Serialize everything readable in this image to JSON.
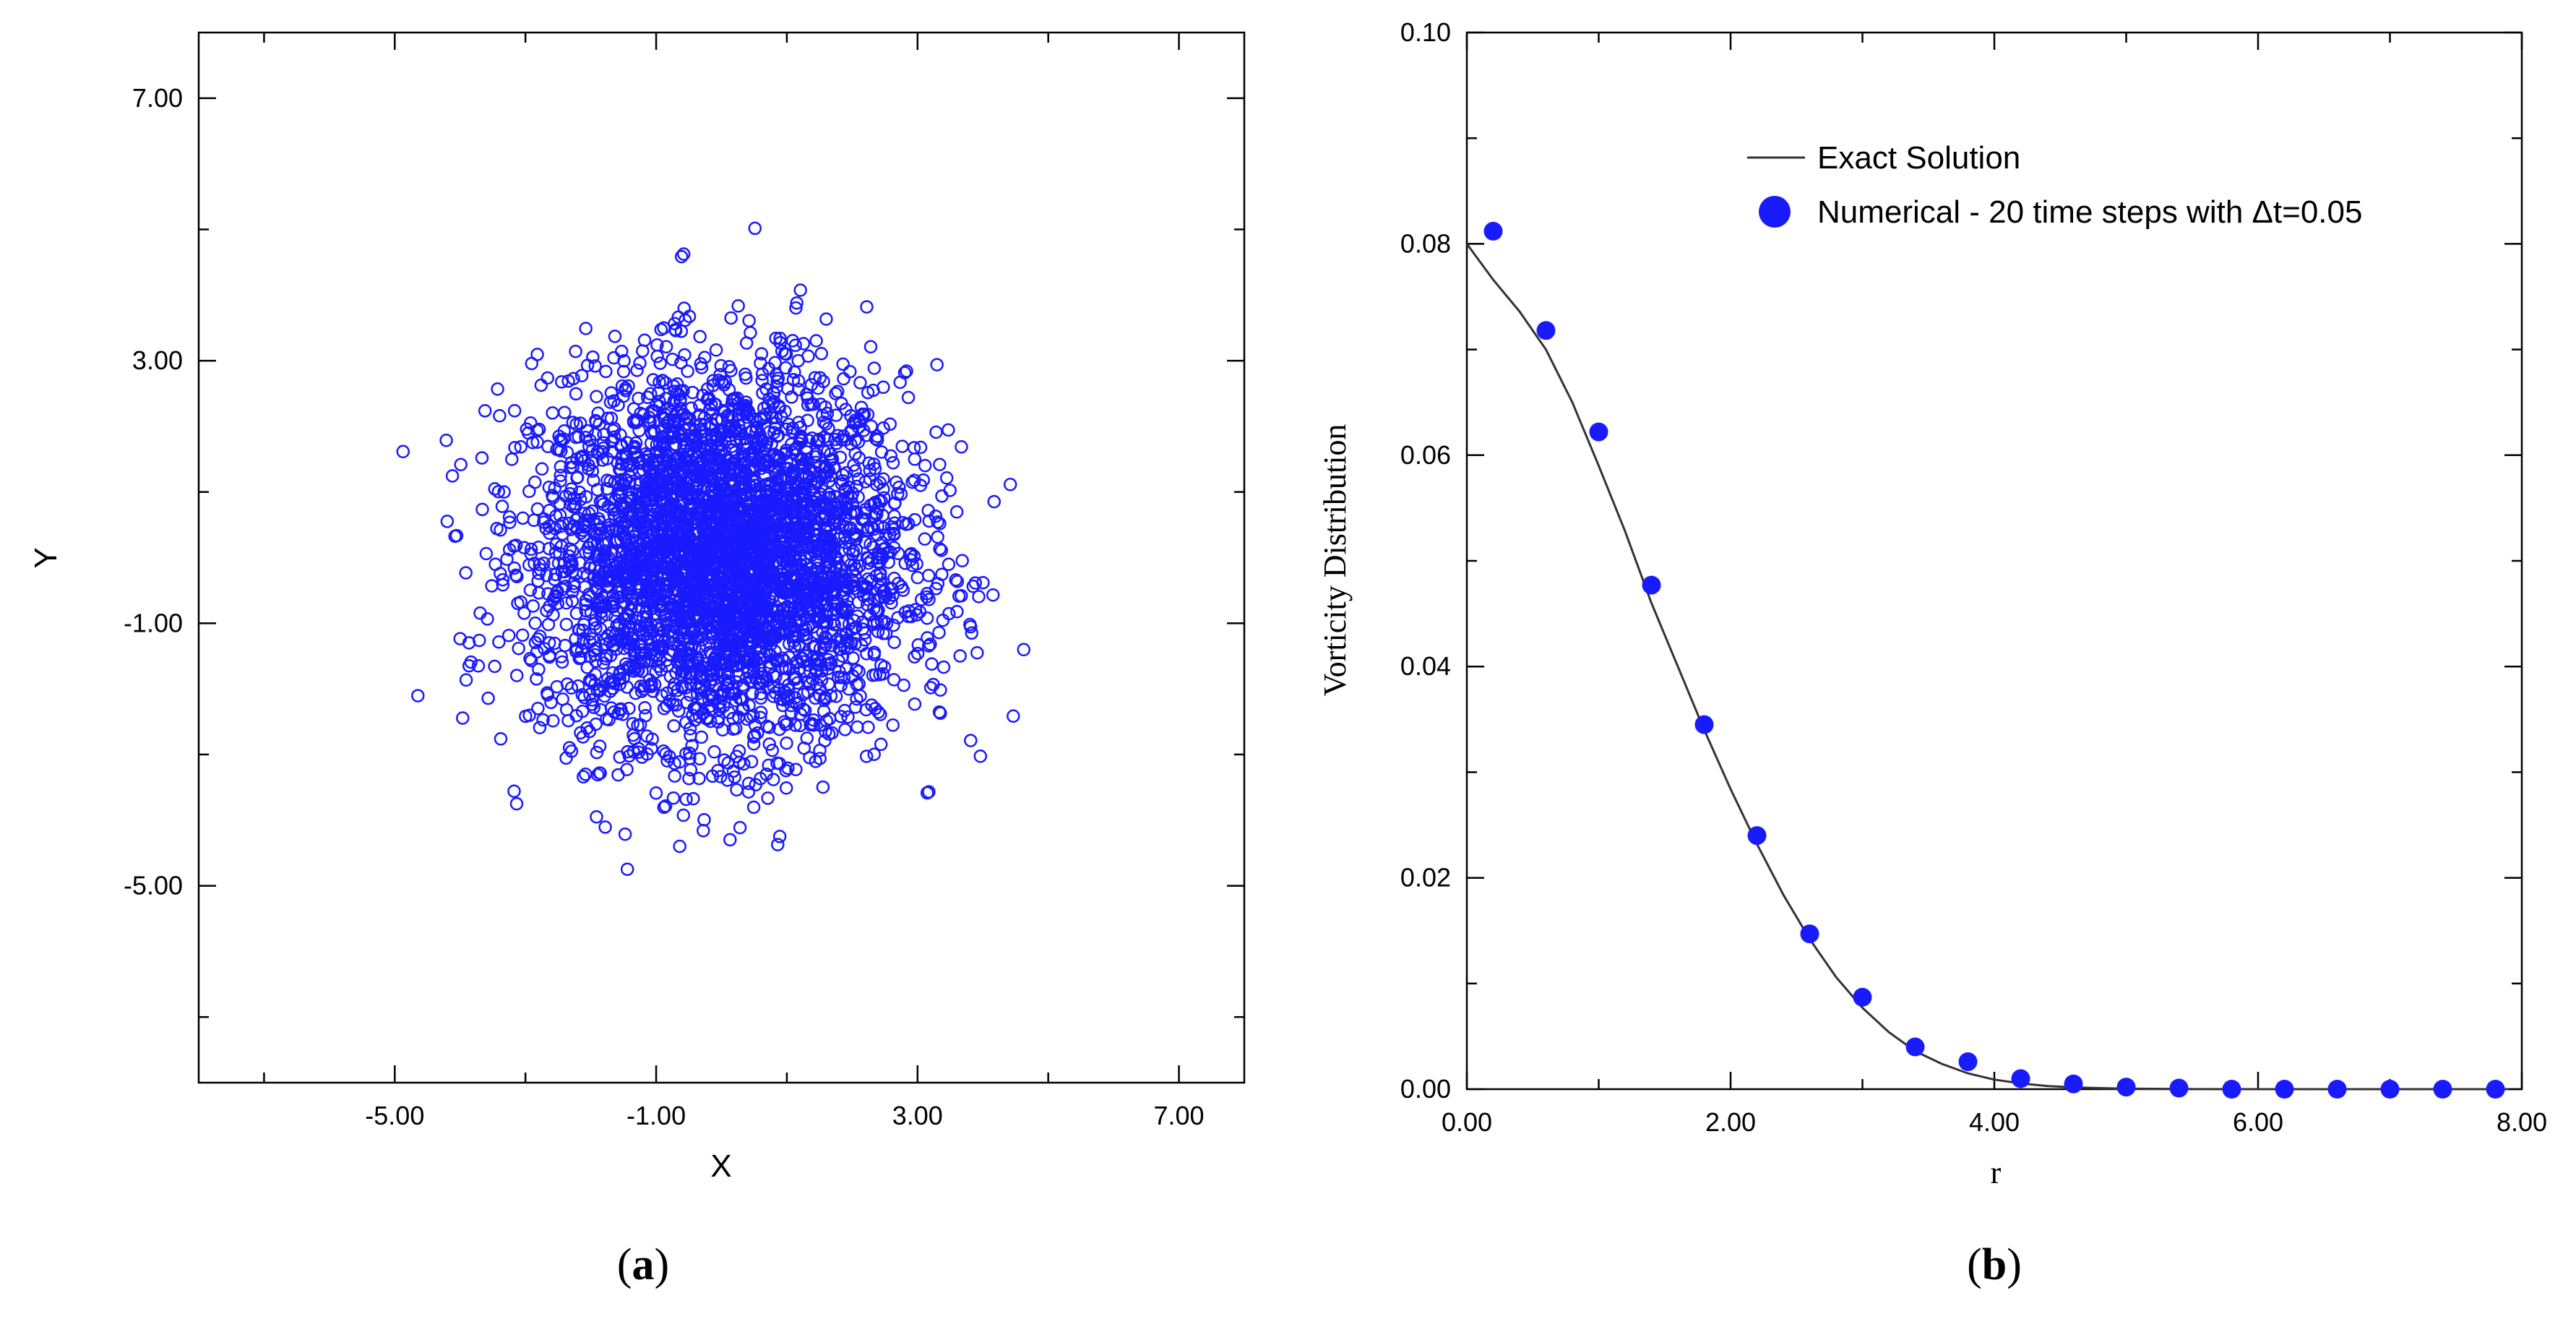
{
  "chart_data": [
    {
      "type": "scatter",
      "caption": "a",
      "xlabel": "X",
      "ylabel": "Y",
      "xlim": [
        -8,
        8
      ],
      "ylim": [
        -8,
        8
      ],
      "x_ticks": [
        -5,
        -1,
        3,
        7
      ],
      "y_ticks": [
        -5,
        -1,
        3,
        7
      ],
      "x_tick_labels": [
        "-5.00",
        "-1.00",
        "3.00",
        "7.00"
      ],
      "y_tick_labels": [
        "-5.00",
        "-1.00",
        "3.00",
        "7.00"
      ],
      "marker": "open-circle",
      "color": "#1a1aff",
      "distribution": {
        "kind": "gaussian",
        "center": [
          0,
          0
        ],
        "std": 1.4,
        "count": 4000,
        "outer_radius": 5.2
      },
      "grid": false
    },
    {
      "type": "line",
      "caption": "b",
      "xlabel": "r",
      "ylabel": "Vorticity Distribution",
      "xlim": [
        0,
        8
      ],
      "ylim": [
        0,
        0.1
      ],
      "x_ticks": [
        0,
        2,
        4,
        6,
        8
      ],
      "y_ticks": [
        0,
        0.02,
        0.04,
        0.06,
        0.08,
        0.1
      ],
      "x_tick_labels": [
        "0.00",
        "2.00",
        "4.00",
        "6.00",
        "8.00"
      ],
      "y_tick_labels": [
        "0.00",
        "0.02",
        "0.04",
        "0.06",
        "0.08",
        "0.10"
      ],
      "legend_position": "top-right",
      "grid": false,
      "series": [
        {
          "name": "Exact Solution",
          "style": "line",
          "color": "#333333",
          "x": [
            0,
            0.2,
            0.4,
            0.6,
            0.8,
            1.0,
            1.2,
            1.4,
            1.6,
            1.8,
            2.0,
            2.2,
            2.4,
            2.6,
            2.8,
            3.0,
            3.2,
            3.4,
            3.6,
            3.8,
            4.0,
            4.2,
            4.4,
            4.6,
            4.8,
            5.0,
            5.5,
            6.0,
            6.5,
            7.0,
            7.5,
            7.9
          ],
          "y": [
            0.08,
            0.0766,
            0.0736,
            0.07,
            0.065,
            0.059,
            0.0528,
            0.046,
            0.04,
            0.034,
            0.0284,
            0.0232,
            0.0184,
            0.0142,
            0.0106,
            0.0077,
            0.0054,
            0.0036,
            0.0024,
            0.0015,
            0.0009,
            0.00055,
            0.0003,
            0.00017,
            0.0001,
            5e-05,
            1e-05,
            0.0,
            0.0,
            0.0,
            0.0,
            0.0
          ]
        },
        {
          "name": "Numerical - 20 time steps with Δt=0.05",
          "style": "marker",
          "color": "#1a1aff",
          "x": [
            0.2,
            0.6,
            1.0,
            1.4,
            1.8,
            2.2,
            2.6,
            3.0,
            3.4,
            3.8,
            4.2,
            4.6,
            5.0,
            5.4,
            5.8,
            6.2,
            6.6,
            7.0,
            7.4,
            7.8
          ],
          "y": [
            0.0812,
            0.0718,
            0.0622,
            0.0477,
            0.0345,
            0.024,
            0.0147,
            0.0087,
            0.004,
            0.0026,
            0.001,
            0.0005,
            0.0002,
            0.0001,
            0.0,
            0.0,
            0.0,
            0.0,
            0.0,
            0.0
          ]
        }
      ]
    }
  ]
}
